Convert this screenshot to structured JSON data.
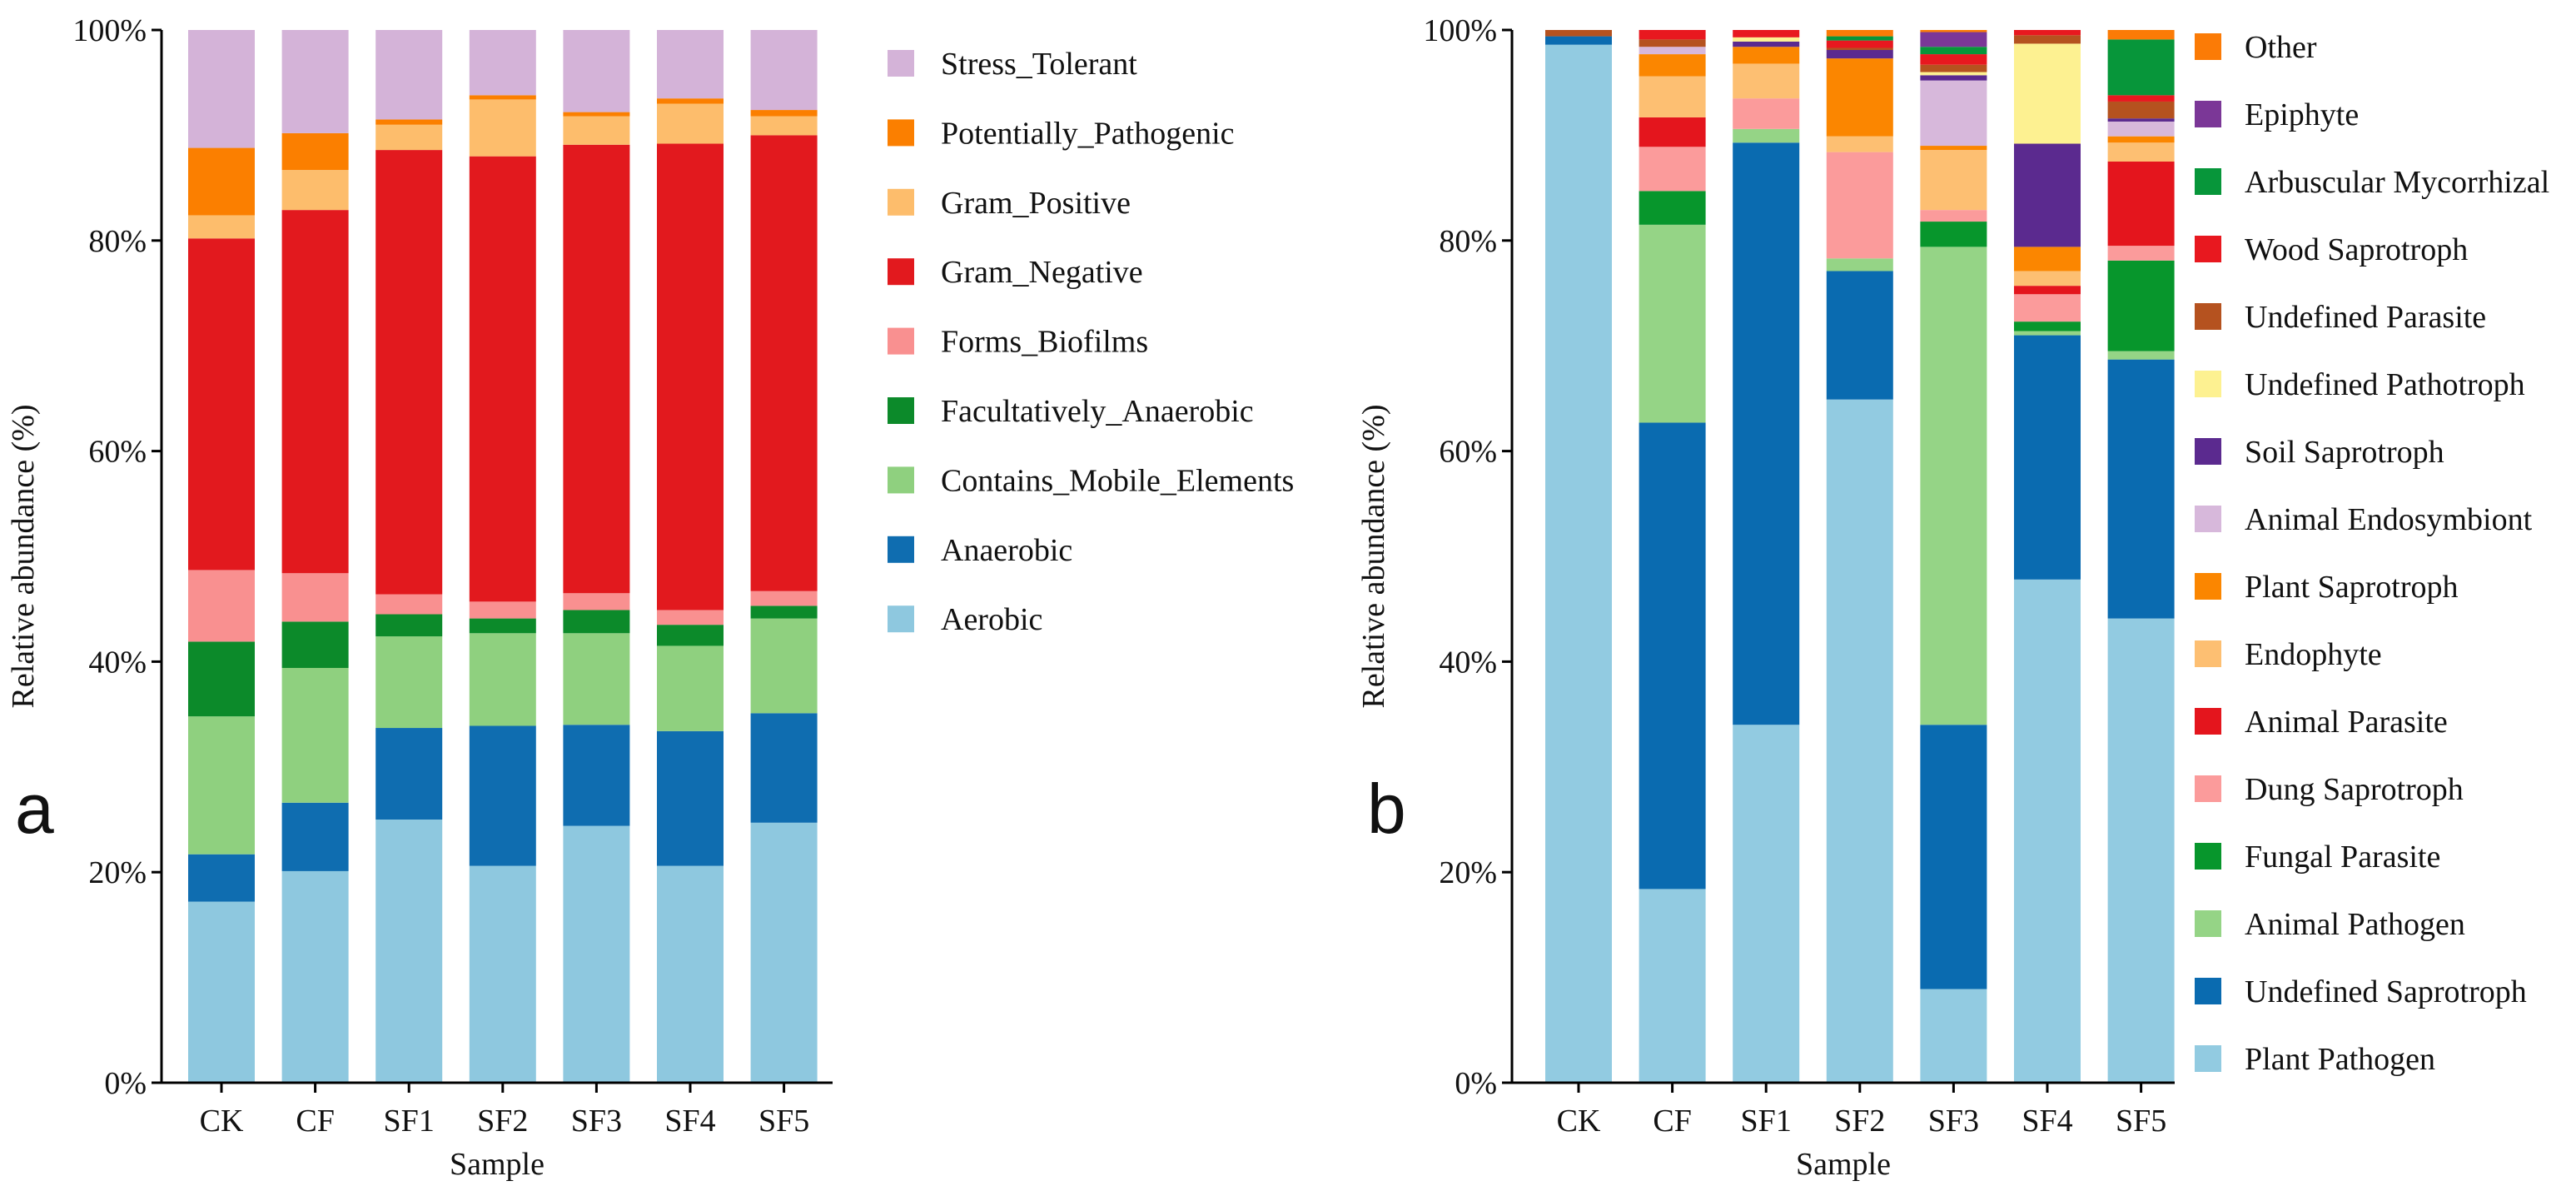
{
  "chart_data": [
    {
      "type": "bar",
      "stacked": true,
      "panel_label": "a",
      "xlabel": "Sample",
      "ylabel": "Relative abundance (%)",
      "ylim": [
        0,
        100
      ],
      "yticks": [
        "0%",
        "20%",
        "40%",
        "60%",
        "80%",
        "100%"
      ],
      "categories": [
        "CK",
        "CF",
        "SF1",
        "SF2",
        "SF3",
        "SF4",
        "SF5"
      ],
      "legend_position": "right",
      "series": [
        {
          "name": "Aerobic",
          "color": "#8ec8df",
          "values": [
            17.2,
            20.1,
            25.0,
            20.6,
            24.4,
            20.6,
            24.7
          ]
        },
        {
          "name": "Anaerobic",
          "color": "#0f6db0",
          "values": [
            4.5,
            6.5,
            8.7,
            13.3,
            9.6,
            12.8,
            10.4
          ]
        },
        {
          "name": "Contains_Mobile_Elements",
          "color": "#8fd07f",
          "values": [
            13.1,
            12.8,
            8.7,
            8.8,
            8.7,
            8.1,
            9.0
          ]
        },
        {
          "name": "Facultatively_Anaerobic",
          "color": "#0c8a2a",
          "values": [
            7.1,
            4.4,
            2.1,
            1.4,
            2.2,
            2.0,
            1.2
          ]
        },
        {
          "name": "Forms_Biofilms",
          "color": "#f99090",
          "values": [
            6.8,
            4.6,
            1.9,
            1.6,
            1.6,
            1.4,
            1.4
          ]
        },
        {
          "name": "Gram_Negative",
          "color": "#e2191e",
          "values": [
            31.5,
            34.5,
            42.2,
            42.3,
            42.6,
            44.3,
            43.3
          ]
        },
        {
          "name": "Gram_Positive",
          "color": "#fdbd6c",
          "values": [
            2.2,
            3.8,
            2.4,
            5.4,
            2.7,
            3.8,
            1.8
          ]
        },
        {
          "name": "Potentially_Pathogenic",
          "color": "#fb7f00",
          "values": [
            6.4,
            3.5,
            0.5,
            0.4,
            0.4,
            0.5,
            0.6
          ]
        },
        {
          "name": "Stress_Tolerant",
          "color": "#d4b3d8",
          "values": [
            11.2,
            9.8,
            8.5,
            6.2,
            7.8,
            6.5,
            7.6
          ]
        }
      ]
    },
    {
      "type": "bar",
      "stacked": true,
      "panel_label": "b",
      "xlabel": "Sample",
      "ylabel": "Relative abundance (%)",
      "ylim": [
        0,
        100
      ],
      "yticks": [
        "0%",
        "20%",
        "40%",
        "60%",
        "80%",
        "100%"
      ],
      "categories": [
        "CK",
        "CF",
        "SF1",
        "SF2",
        "SF3",
        "SF4",
        "SF5"
      ],
      "legend_position": "right",
      "series": [
        {
          "name": "Plant Pathogen",
          "color": "#92cbe1",
          "values": [
            98.6,
            18.4,
            34.0,
            64.9,
            8.9,
            47.8,
            44.1
          ]
        },
        {
          "name": "Undefined Saprotroph",
          "color": "#0a6bb0",
          "values": [
            0.8,
            44.3,
            55.3,
            12.2,
            25.1,
            23.2,
            24.6
          ]
        },
        {
          "name": "Animal Pathogen",
          "color": "#95d486",
          "values": [
            0,
            18.8,
            1.3,
            1.2,
            45.4,
            0.4,
            0.8
          ]
        },
        {
          "name": "Fungal Parasite",
          "color": "#07962c",
          "values": [
            0,
            3.2,
            0,
            0,
            2.4,
            0.9,
            8.6
          ]
        },
        {
          "name": "Dung Saprotroph",
          "color": "#fb9b9b",
          "values": [
            0,
            4.2,
            2.9,
            10.1,
            1.1,
            2.6,
            1.4
          ]
        },
        {
          "name": "Animal Parasite",
          "color": "#e4151d",
          "values": [
            0,
            2.8,
            0,
            0,
            0,
            0.8,
            8.0
          ]
        },
        {
          "name": "Endophyte",
          "color": "#fdbf72",
          "values": [
            0,
            3.9,
            3.3,
            1.5,
            5.7,
            1.4,
            1.8
          ]
        },
        {
          "name": "Plant Saprotroph",
          "color": "#fb8600",
          "values": [
            0,
            2.1,
            1.6,
            7.4,
            0.4,
            2.3,
            0.6
          ]
        },
        {
          "name": "Animal Endosymbiont",
          "color": "#d7b8db",
          "values": [
            0,
            0.7,
            0,
            0,
            6.2,
            0,
            1.4
          ]
        },
        {
          "name": "Soil Saprotroph",
          "color": "#5b2a8f",
          "values": [
            0,
            0,
            0.5,
            0.8,
            0.5,
            9.8,
            0.3
          ]
        },
        {
          "name": "Undefined Pathotroph",
          "color": "#fdf191",
          "values": [
            0,
            0,
            0.4,
            0,
            0.3,
            9.5,
            0
          ]
        },
        {
          "name": "Undefined Parasite",
          "color": "#b5521f",
          "values": [
            0.6,
            0.7,
            0,
            0.2,
            0.7,
            0.8,
            1.6
          ]
        },
        {
          "name": "Wood Saprotroph",
          "color": "#e8181f",
          "values": [
            0,
            0.9,
            0.7,
            0.7,
            1.0,
            0.5,
            0.6
          ]
        },
        {
          "name": "Arbuscular Mycorrhizal",
          "color": "#07963a",
          "values": [
            0,
            0,
            0,
            0.4,
            0.7,
            0,
            5.3
          ]
        },
        {
          "name": "Epiphyte",
          "color": "#7b3797",
          "values": [
            0,
            0,
            0,
            0,
            1.4,
            0,
            0
          ]
        },
        {
          "name": "Other",
          "color": "#fb7b06",
          "values": [
            0,
            0,
            0,
            0.6,
            0.2,
            0,
            0.9
          ]
        }
      ]
    }
  ]
}
